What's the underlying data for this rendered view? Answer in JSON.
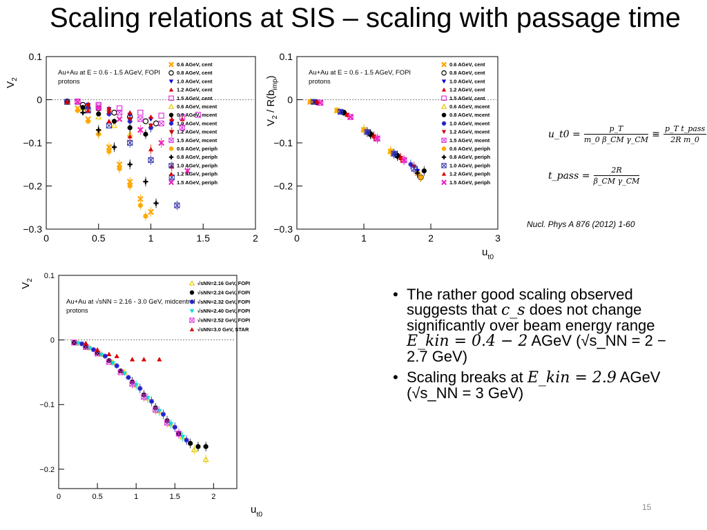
{
  "slide": {
    "title": "Scaling relations at SIS – scaling with passage time",
    "page_number": "15",
    "citation": "Nucl. Phys A 876 (2012) 1-60"
  },
  "formulas": {
    "ut0": {
      "lhs": "u_t0 =",
      "num1": "p_T",
      "den1": "m_0 β_CM γ_CM",
      "equiv": "≡",
      "num2": "p_T t_pass",
      "den2": "2R m_0"
    },
    "tpass": {
      "lhs": "t_pass =",
      "num": "2R",
      "den": "β_CM γ_CM"
    }
  },
  "bullets": [
    {
      "text_a": "The rather good scaling observed suggests that ",
      "math_a": "c_s",
      "text_b": " does not change significantly over beam energy range ",
      "math_b": "E_kin = 0.4 − 2",
      "text_c": " AGeV (√s_NN = 2 − 2.7 GeV)"
    },
    {
      "text_a": "Scaling breaks at ",
      "math_a": "E_kin = 2.9",
      "text_b": " AGeV (√s_NN = 3 GeV)"
    }
  ],
  "icons": {
    "bullet": "bullet-dot-icon"
  },
  "chart_data": [
    {
      "id": "chart1",
      "type": "scatter",
      "xlabel": "",
      "ylabel": "V2",
      "xlim": [
        0,
        2
      ],
      "ylim": [
        -0.3,
        0.1
      ],
      "xticks": [
        "0",
        "0.5",
        "1",
        "1.5",
        "2"
      ],
      "yticks": [
        "0.1",
        "0",
        "−0.1",
        "−0.2",
        "−0.3"
      ],
      "annotation": [
        "Au+Au at E = 0.6 - 1.5 AGeV, FOPI",
        "protons"
      ],
      "legend_position": "top-right",
      "series": [
        {
          "name": "0.6 AGeV, cent",
          "color": "#ffa500",
          "marker": "x",
          "x": [
            0.2,
            0.3,
            0.4,
            0.5,
            0.6,
            0.7,
            0.8,
            0.9,
            1.0
          ],
          "y": [
            -0.005,
            -0.02,
            -0.045,
            -0.075,
            -0.11,
            -0.15,
            -0.19,
            -0.23,
            -0.26
          ]
        },
        {
          "name": "0.8 AGeV, cent",
          "color": "#000000",
          "marker": "circle-open",
          "x": [
            0.2,
            0.35,
            0.5,
            0.65,
            0.8,
            0.95,
            1.05
          ],
          "y": [
            -0.004,
            -0.012,
            -0.02,
            -0.03,
            -0.04,
            -0.05,
            -0.055
          ]
        },
        {
          "name": "1.0 AGeV, cent",
          "color": "#0000dd",
          "marker": "triangle-down",
          "x": [
            0.2,
            0.4,
            0.6,
            0.8,
            1.0,
            1.2
          ],
          "y": [
            -0.004,
            -0.012,
            -0.022,
            -0.035,
            -0.045,
            -0.05
          ]
        },
        {
          "name": "1.2 AGeV, cent",
          "color": "#dd0000",
          "marker": "triangle",
          "x": [
            0.2,
            0.4,
            0.6,
            0.8,
            1.0,
            1.2,
            1.3
          ],
          "y": [
            -0.003,
            -0.01,
            -0.02,
            -0.03,
            -0.04,
            -0.045,
            -0.045
          ]
        },
        {
          "name": "1.5 AGeV, cent",
          "color": "#dd33dd",
          "marker": "square-open",
          "x": [
            0.3,
            0.5,
            0.7,
            0.9,
            1.1,
            1.3,
            1.45
          ],
          "y": [
            -0.004,
            -0.012,
            -0.02,
            -0.03,
            -0.037,
            -0.04,
            -0.035
          ]
        },
        {
          "name": "0.6 AGeV, mcent",
          "color": "#e8c800",
          "marker": "triangle-open",
          "x": [
            0.2,
            0.35,
            0.5,
            0.65,
            0.8
          ],
          "y": [
            -0.006,
            -0.02,
            -0.04,
            -0.06,
            -0.08
          ]
        },
        {
          "name": "0.8 AGeV, mcent",
          "color": "#000000",
          "marker": "circle",
          "x": [
            0.2,
            0.35,
            0.5,
            0.65,
            0.8,
            0.95
          ],
          "y": [
            -0.005,
            -0.018,
            -0.033,
            -0.05,
            -0.065,
            -0.08
          ]
        },
        {
          "name": "1.0 AGeV, mcent",
          "color": "#2222cc",
          "marker": "star",
          "x": [
            0.2,
            0.4,
            0.6,
            0.8,
            1.0
          ],
          "y": [
            -0.005,
            -0.017,
            -0.033,
            -0.05,
            -0.065
          ]
        },
        {
          "name": "1.2 AGeV, mcent",
          "color": "#cc0000",
          "marker": "triangle-down",
          "x": [
            0.2,
            0.4,
            0.6,
            0.8,
            1.0,
            1.2
          ],
          "y": [
            -0.005,
            -0.015,
            -0.03,
            -0.045,
            -0.06,
            -0.075
          ]
        },
        {
          "name": "1.5 AGeV, mcent",
          "color": "#dd33dd",
          "marker": "square-open-x",
          "x": [
            0.3,
            0.5,
            0.7,
            0.9,
            1.1,
            1.3
          ],
          "y": [
            -0.005,
            -0.015,
            -0.03,
            -0.045,
            -0.055,
            -0.065
          ]
        },
        {
          "name": "0.6 AGeV, periph",
          "color": "#ffaa00",
          "marker": "circle",
          "x": [
            0.2,
            0.3,
            0.4,
            0.5,
            0.6,
            0.7,
            0.8,
            0.9,
            0.95
          ],
          "y": [
            -0.006,
            -0.025,
            -0.05,
            -0.08,
            -0.12,
            -0.16,
            -0.2,
            -0.245,
            -0.27
          ]
        },
        {
          "name": "0.8 AGeV, periph",
          "color": "#000000",
          "marker": "plus",
          "x": [
            0.2,
            0.35,
            0.5,
            0.65,
            0.8,
            0.95,
            1.05
          ],
          "y": [
            -0.005,
            -0.03,
            -0.07,
            -0.11,
            -0.15,
            -0.19,
            -0.24
          ]
        },
        {
          "name": "1.0 AGeV, periph",
          "color": "#3333aa",
          "marker": "square-open-x",
          "x": [
            0.2,
            0.4,
            0.6,
            0.8,
            1.0,
            1.2,
            1.25
          ],
          "y": [
            -0.005,
            -0.025,
            -0.06,
            -0.1,
            -0.14,
            -0.18,
            -0.245
          ]
        },
        {
          "name": "1.2 AGeV, periph",
          "color": "#dd0000",
          "marker": "triangle",
          "x": [
            0.2,
            0.4,
            0.6,
            0.8,
            1.0,
            1.2
          ],
          "y": [
            -0.005,
            -0.025,
            -0.05,
            -0.085,
            -0.115,
            -0.155
          ]
        },
        {
          "name": "1.5 AGeV, periph",
          "color": "#ee22bb",
          "marker": "x",
          "x": [
            0.3,
            0.5,
            0.7,
            0.9,
            1.1,
            1.35
          ],
          "y": [
            -0.005,
            -0.02,
            -0.045,
            -0.07,
            -0.1,
            -0.165
          ]
        }
      ]
    },
    {
      "id": "chart2",
      "type": "scatter",
      "xlabel": "ut0",
      "ylabel": "V2 / R(bimp)",
      "xlim": [
        0,
        3
      ],
      "ylim": [
        -0.3,
        0.1
      ],
      "xticks": [
        "0",
        "1",
        "2",
        "3"
      ],
      "yticks": [
        "0.1",
        "0",
        "−0.1",
        "−0.2",
        "−0.3"
      ],
      "annotation": [
        "Au+Au at E = 0.6 - 1.5 AGeV, FOPI",
        "protons"
      ],
      "legend_position": "top-right",
      "series": [
        {
          "name": "0.6 AGeV, cent",
          "color": "#ffa500",
          "marker": "x",
          "x": [
            0.2,
            0.6,
            1.0,
            1.4,
            1.8
          ],
          "y": [
            -0.005,
            -0.025,
            -0.07,
            -0.12,
            -0.17
          ]
        },
        {
          "name": "0.8 AGeV, cent",
          "color": "#000000",
          "marker": "circle-open",
          "x": [
            0.3,
            0.7,
            1.1,
            1.5,
            1.85
          ],
          "y": [
            -0.006,
            -0.03,
            -0.08,
            -0.13,
            -0.18
          ]
        },
        {
          "name": "1.0 AGeV, cent",
          "color": "#0000dd",
          "marker": "triangle-down",
          "x": [
            0.25,
            0.65,
            1.05,
            1.45,
            1.8
          ],
          "y": [
            -0.005,
            -0.028,
            -0.075,
            -0.125,
            -0.165
          ]
        },
        {
          "name": "1.2 AGeV, cent",
          "color": "#dd0000",
          "marker": "triangle",
          "x": [
            0.3,
            0.75,
            1.15,
            1.55
          ],
          "y": [
            -0.005,
            -0.035,
            -0.085,
            -0.135
          ]
        },
        {
          "name": "1.5 AGeV, cent",
          "color": "#dd33dd",
          "marker": "square-open",
          "x": [
            0.35,
            0.8,
            1.2,
            1.6
          ],
          "y": [
            -0.007,
            -0.04,
            -0.09,
            -0.14
          ]
        },
        {
          "name": "0.6 AGeV, mcent",
          "color": "#e8c800",
          "marker": "triangle-open",
          "x": [
            0.2,
            0.6,
            1.0,
            1.4
          ],
          "y": [
            -0.004,
            -0.024,
            -0.068,
            -0.118
          ]
        },
        {
          "name": "0.8 AGeV, mcent",
          "color": "#000000",
          "marker": "circle",
          "x": [
            0.3,
            0.7,
            1.1,
            1.5,
            1.9
          ],
          "y": [
            -0.006,
            -0.03,
            -0.08,
            -0.13,
            -0.165
          ]
        },
        {
          "name": "1.0 AGeV, mcent",
          "color": "#2222cc",
          "marker": "star",
          "x": [
            0.25,
            0.65,
            1.05,
            1.45,
            1.7
          ],
          "y": [
            -0.005,
            -0.028,
            -0.075,
            -0.125,
            -0.15
          ]
        },
        {
          "name": "1.2 AGeV, mcent",
          "color": "#cc0000",
          "marker": "triangle-down",
          "x": [
            0.3,
            0.75,
            1.15,
            1.55,
            1.75
          ],
          "y": [
            -0.005,
            -0.035,
            -0.085,
            -0.135,
            -0.155
          ]
        },
        {
          "name": "1.5 AGeV, mcent",
          "color": "#dd33dd",
          "marker": "square-open-x",
          "x": [
            0.35,
            0.8,
            1.2,
            1.6
          ],
          "y": [
            -0.007,
            -0.04,
            -0.09,
            -0.14
          ]
        },
        {
          "name": "0.6 AGeV, periph",
          "color": "#ffaa00",
          "marker": "circle",
          "x": [
            0.2,
            0.6,
            1.0,
            1.4,
            1.85
          ],
          "y": [
            -0.005,
            -0.025,
            -0.07,
            -0.12,
            -0.18
          ]
        },
        {
          "name": "0.8 AGeV, periph",
          "color": "#000000",
          "marker": "plus",
          "x": [
            0.3,
            0.7,
            1.1,
            1.5,
            1.8
          ],
          "y": [
            -0.006,
            -0.03,
            -0.08,
            -0.13,
            -0.17
          ]
        },
        {
          "name": "1.0 AGeV, periph",
          "color": "#3333aa",
          "marker": "square-open-x",
          "x": [
            0.25,
            0.65,
            1.05,
            1.45,
            1.75
          ],
          "y": [
            -0.005,
            -0.028,
            -0.075,
            -0.125,
            -0.16
          ]
        },
        {
          "name": "1.2 AGeV, periph",
          "color": "#dd0000",
          "marker": "triangle",
          "x": [
            0.3,
            0.75,
            1.15,
            1.55
          ],
          "y": [
            -0.005,
            -0.035,
            -0.085,
            -0.135
          ]
        },
        {
          "name": "1.5 AGeV, periph",
          "color": "#ee22bb",
          "marker": "x",
          "x": [
            0.35,
            0.8,
            1.2,
            1.6
          ],
          "y": [
            -0.007,
            -0.04,
            -0.09,
            -0.14
          ]
        }
      ]
    },
    {
      "id": "chart3",
      "type": "scatter",
      "xlabel": "ut0",
      "ylabel": "V2",
      "xlim": [
        0,
        2.3
      ],
      "ylim": [
        -0.23,
        0.1
      ],
      "xticks": [
        "0",
        "0.5",
        "1",
        "1.5",
        "2"
      ],
      "yticks": [
        "0.1",
        "0",
        "−0.1",
        "−0.2"
      ],
      "annotation": [
        "Au+Au at √sNN = 2.16 - 3.0 GeV, midcentral",
        "protons"
      ],
      "legend_position": "top-right",
      "series": [
        {
          "name": "√sNN=2.16 GeV, FOPI",
          "color": "#e8c800",
          "marker": "triangle-open",
          "x": [
            0.25,
            0.4,
            0.55,
            0.7,
            0.85,
            1.0,
            1.15,
            1.3,
            1.45,
            1.6,
            1.75,
            1.9
          ],
          "y": [
            -0.005,
            -0.012,
            -0.022,
            -0.035,
            -0.05,
            -0.07,
            -0.09,
            -0.11,
            -0.13,
            -0.15,
            -0.17,
            -0.185
          ]
        },
        {
          "name": "√sNN=2.24 GeV, FOPI",
          "color": "#000000",
          "marker": "circle",
          "x": [
            0.2,
            0.35,
            0.5,
            0.65,
            0.8,
            0.95,
            1.1,
            1.25,
            1.4,
            1.55,
            1.7,
            1.8,
            1.9
          ],
          "y": [
            -0.004,
            -0.01,
            -0.02,
            -0.032,
            -0.048,
            -0.065,
            -0.085,
            -0.105,
            -0.125,
            -0.145,
            -0.16,
            -0.165,
            -0.165
          ]
        },
        {
          "name": "√sNN=2.32 GeV, FOPI",
          "color": "#2222cc",
          "marker": "star",
          "x": [
            0.3,
            0.45,
            0.6,
            0.75,
            0.9,
            1.05,
            1.2,
            1.35,
            1.5,
            1.65
          ],
          "y": [
            -0.006,
            -0.015,
            -0.025,
            -0.04,
            -0.058,
            -0.075,
            -0.095,
            -0.115,
            -0.135,
            -0.155
          ]
        },
        {
          "name": "√sNN=2.40 GeV, FOPI",
          "color": "#00dddd",
          "marker": "triangle-down",
          "x": [
            0.25,
            0.4,
            0.55,
            0.7,
            0.85,
            1.0,
            1.15,
            1.3,
            1.45,
            1.6
          ],
          "y": [
            -0.005,
            -0.013,
            -0.023,
            -0.036,
            -0.052,
            -0.07,
            -0.09,
            -0.11,
            -0.13,
            -0.15
          ]
        },
        {
          "name": "√sNN=2.52 GeV, FOPI",
          "color": "#dd33dd",
          "marker": "square-open-x",
          "x": [
            0.2,
            0.35,
            0.5,
            0.65,
            0.8,
            0.95,
            1.1,
            1.25,
            1.4,
            1.55
          ],
          "y": [
            -0.004,
            -0.011,
            -0.021,
            -0.034,
            -0.05,
            -0.068,
            -0.088,
            -0.108,
            -0.128,
            -0.145
          ]
        },
        {
          "name": "√sNN=3.0 GeV, STAR",
          "color": "#dd0000",
          "marker": "triangle",
          "x": [
            0.35,
            0.5,
            0.65,
            0.75,
            0.95,
            1.1,
            1.3
          ],
          "y": [
            -0.005,
            -0.015,
            -0.022,
            -0.025,
            -0.03,
            -0.03,
            -0.03
          ]
        }
      ]
    }
  ]
}
